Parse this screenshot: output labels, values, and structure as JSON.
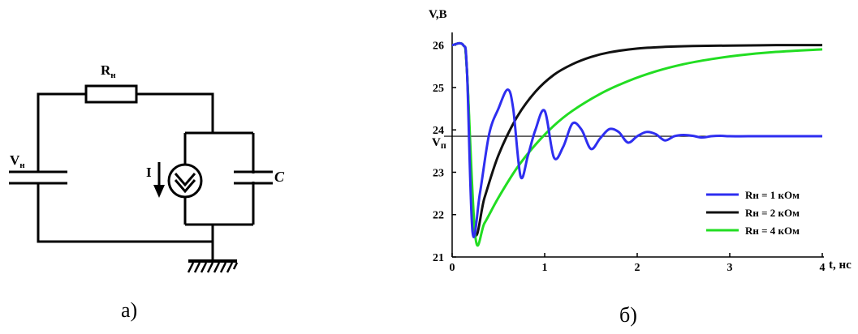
{
  "circuit": {
    "resistor_label": "R",
    "resistor_sub": "н",
    "source_label": "V",
    "source_sub": "н",
    "current_label": "I",
    "capacitor_label": "C",
    "caption": "а)"
  },
  "chart_data": {
    "type": "line",
    "ylabel": "V,В",
    "xlabel": "t, нс",
    "xlim": [
      0,
      4
    ],
    "ylim": [
      21,
      26.3
    ],
    "xticks": [
      0,
      1,
      2,
      3,
      4
    ],
    "yticks": [
      21,
      22,
      23,
      24,
      25,
      26
    ],
    "reference_line": {
      "label": "V",
      "label_sub": "п",
      "value": 23.85
    },
    "legend_position": "lower-right",
    "grid": false,
    "series": [
      {
        "name": "Rн = 1 кОм",
        "color": "#2e2ef0",
        "x": [
          0,
          0.12,
          0.16,
          0.22,
          0.3,
          0.4,
          0.5,
          0.6,
          0.66,
          0.74,
          0.82,
          0.9,
          1.0,
          1.1,
          1.2,
          1.3,
          1.4,
          1.5,
          1.6,
          1.7,
          1.8,
          1.9,
          2.0,
          2.1,
          2.2,
          2.3,
          2.4,
          2.5,
          2.6,
          2.7,
          2.8,
          2.9,
          3.0,
          3.2,
          3.5,
          4.0
        ],
        "y": [
          26,
          26,
          25.4,
          21.6,
          22.5,
          23.9,
          24.5,
          24.95,
          24.5,
          22.9,
          23.4,
          24.0,
          24.45,
          23.35,
          23.6,
          24.15,
          24.0,
          23.55,
          23.8,
          24.02,
          23.95,
          23.7,
          23.85,
          23.95,
          23.9,
          23.75,
          23.85,
          23.88,
          23.86,
          23.82,
          23.85,
          23.86,
          23.85,
          23.85,
          23.85,
          23.85
        ]
      },
      {
        "name": "Rн = 2 кОм",
        "color": "#111111",
        "x": [
          0,
          0.12,
          0.16,
          0.24,
          0.35,
          0.5,
          0.7,
          0.9,
          1.1,
          1.3,
          1.5,
          1.7,
          2.0,
          2.3,
          2.6,
          3.0,
          3.5,
          4.0
        ],
        "y": [
          26,
          26,
          25.4,
          21.65,
          22.4,
          23.4,
          24.3,
          24.9,
          25.3,
          25.55,
          25.72,
          25.83,
          25.92,
          25.96,
          25.98,
          25.99,
          26.0,
          26.0
        ]
      },
      {
        "name": "Rн = 4 кОм",
        "color": "#22dd22",
        "x": [
          0,
          0.12,
          0.16,
          0.25,
          0.35,
          0.5,
          0.7,
          0.9,
          1.1,
          1.3,
          1.6,
          1.9,
          2.2,
          2.5,
          2.8,
          3.1,
          3.5,
          4.0
        ],
        "y": [
          26,
          26,
          25.4,
          21.5,
          21.8,
          22.4,
          23.1,
          23.65,
          24.1,
          24.45,
          24.85,
          25.15,
          25.38,
          25.55,
          25.67,
          25.76,
          25.84,
          25.9
        ]
      }
    ],
    "caption": "б)"
  }
}
